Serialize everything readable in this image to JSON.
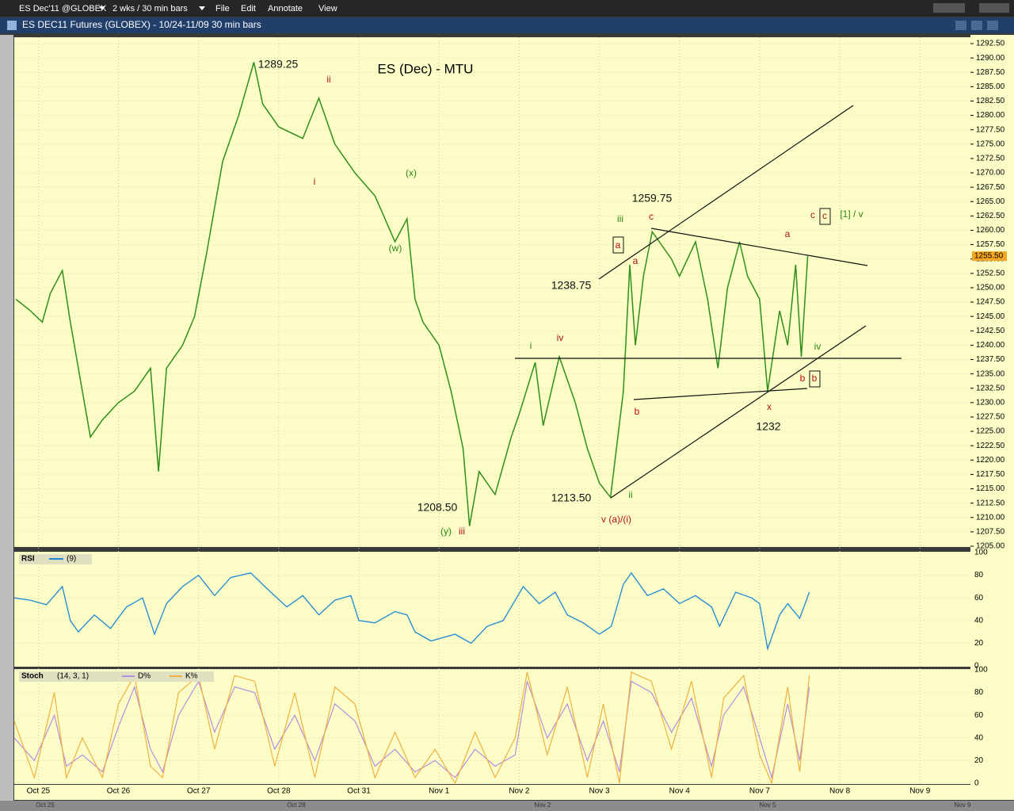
{
  "toolbar": {
    "symbol": "ES Dec'11 @GLOBEX",
    "period": "2 wks / 30 min bars",
    "menu": [
      "File",
      "Edit",
      "Annotate",
      "View"
    ]
  },
  "window_title": "ES DEC11 Futures (GLOBEX) - 10/24-11/09  30 min bars",
  "price_chart": {
    "title": "ES (Dec) - MTU",
    "xlim": [
      -0.3,
      11.63
    ],
    "ylim": [
      1205,
      1292.5
    ],
    "yticks": [
      {
        "value": 1205,
        "label": "1205.00"
      },
      {
        "value": 1207.5,
        "label": "1207.50"
      },
      {
        "value": 1210,
        "label": "1210.00"
      },
      {
        "value": 1212.5,
        "label": "1212.50"
      },
      {
        "value": 1215,
        "label": "1215.00"
      },
      {
        "value": 1217.5,
        "label": "1217.50"
      },
      {
        "value": 1220,
        "label": "1220.00"
      },
      {
        "value": 1222.5,
        "label": "1222.50"
      },
      {
        "value": 1225,
        "label": "1225.00"
      },
      {
        "value": 1227.5,
        "label": "1227.50"
      },
      {
        "value": 1230,
        "label": "1230.00"
      },
      {
        "value": 1232.5,
        "label": "1232.50"
      },
      {
        "value": 1235,
        "label": "1235.00"
      },
      {
        "value": 1237.5,
        "label": "1237.50"
      },
      {
        "value": 1240,
        "label": "1240.00"
      },
      {
        "value": 1242.5,
        "label": "1242.50"
      },
      {
        "value": 1245,
        "label": "1245.00"
      },
      {
        "value": 1247.5,
        "label": "1247.50"
      },
      {
        "value": 1250,
        "label": "1250.00"
      },
      {
        "value": 1252.5,
        "label": "1252.50"
      },
      {
        "value": 1255,
        "label": "1255.00"
      },
      {
        "value": 1257.5,
        "label": "1257.50"
      },
      {
        "value": 1260,
        "label": "1260.00"
      },
      {
        "value": 1262.5,
        "label": "1262.50"
      },
      {
        "value": 1265,
        "label": "1265.00"
      },
      {
        "value": 1267.5,
        "label": "1267.50"
      },
      {
        "value": 1270,
        "label": "1270.00"
      },
      {
        "value": 1272.5,
        "label": "1272.50"
      },
      {
        "value": 1275,
        "label": "1275.00"
      },
      {
        "value": 1277.5,
        "label": "1277.50"
      },
      {
        "value": 1280,
        "label": "1280.00"
      },
      {
        "value": 1282.5,
        "label": "1282.50"
      },
      {
        "value": 1285,
        "label": "1285.00"
      },
      {
        "value": 1287.5,
        "label": "1287.50"
      },
      {
        "value": 1290,
        "label": "1290.00"
      },
      {
        "value": 1292.5,
        "label": "1292.50"
      }
    ],
    "last": {
      "value": 1255.5,
      "label": "1255.50"
    },
    "x": [
      -0.28,
      -0.1,
      0.05,
      0.15,
      0.3,
      0.4,
      0.5,
      0.65,
      0.8,
      1.0,
      1.2,
      1.4,
      1.5,
      1.6,
      1.8,
      1.95,
      2.1,
      2.3,
      2.5,
      2.69,
      2.8,
      3.0,
      3.3,
      3.5,
      3.7,
      3.95,
      4.2,
      4.45,
      4.6,
      4.7,
      4.8,
      5.0,
      5.15,
      5.3,
      5.38,
      5.5,
      5.7,
      5.9,
      6.0,
      6.2,
      6.3,
      6.5,
      6.7,
      6.85,
      7.0,
      7.14,
      7.3,
      7.38,
      7.45,
      7.55,
      7.66,
      7.9,
      8.0,
      8.2,
      8.35,
      8.48,
      8.6,
      8.75,
      8.85,
      9.0,
      9.1,
      9.25,
      9.35,
      9.45,
      9.52,
      9.6
    ],
    "values": [
      1248,
      1246,
      1244,
      1249,
      1253,
      1244,
      1236,
      1224,
      1227,
      1230,
      1232,
      1236,
      1218,
      1236,
      1240,
      1245,
      1256,
      1272,
      1280,
      1289.25,
      1282,
      1278,
      1276,
      1283,
      1275,
      1270,
      1266,
      1258,
      1262,
      1248,
      1244,
      1240,
      1232,
      1222,
      1208.5,
      1218,
      1214,
      1224,
      1228,
      1237,
      1226,
      1238,
      1230,
      1222,
      1216,
      1213.5,
      1232,
      1254,
      1240,
      1252,
      1259.75,
      1255,
      1252,
      1258,
      1248,
      1236,
      1250,
      1258,
      1252,
      1248,
      1232,
      1246,
      1240,
      1254,
      1238,
      1255.5
    ],
    "annotations": [
      "1289.25",
      "ii",
      "i",
      "(x)",
      "(w)",
      "1259.75",
      "iii",
      "c",
      "a",
      "a",
      "1238.75",
      "iv",
      "i",
      "b",
      "1208.50",
      "(y)",
      "iii",
      "1213.50",
      "ii",
      "v (a)/(i)",
      "c",
      "c",
      "[1] / v",
      "a",
      "iv",
      "b",
      "b",
      "x",
      "1232"
    ]
  },
  "rsi": {
    "label": "RSI",
    "params": "(9)",
    "ylim": [
      0,
      100
    ],
    "yticks": [
      0,
      20,
      40,
      60,
      80,
      100
    ],
    "x": [
      -0.3,
      -0.1,
      0.1,
      0.3,
      0.4,
      0.5,
      0.7,
      0.9,
      1.1,
      1.3,
      1.45,
      1.6,
      1.8,
      2.0,
      2.2,
      2.4,
      2.65,
      2.9,
      3.1,
      3.3,
      3.5,
      3.7,
      3.9,
      4.0,
      4.2,
      4.45,
      4.6,
      4.7,
      4.9,
      5.2,
      5.4,
      5.6,
      5.8,
      6.05,
      6.25,
      6.45,
      6.6,
      6.8,
      7.0,
      7.15,
      7.3,
      7.4,
      7.6,
      7.8,
      8.0,
      8.2,
      8.4,
      8.5,
      8.7,
      8.9,
      9.0,
      9.1,
      9.25,
      9.35,
      9.5,
      9.62
    ],
    "values": [
      60,
      58,
      54,
      70,
      40,
      30,
      45,
      33,
      52,
      60,
      28,
      55,
      70,
      80,
      62,
      78,
      82,
      65,
      52,
      62,
      45,
      58,
      62,
      40,
      38,
      48,
      45,
      30,
      22,
      28,
      20,
      35,
      40,
      70,
      55,
      65,
      45,
      38,
      28,
      35,
      72,
      82,
      62,
      68,
      55,
      62,
      52,
      35,
      65,
      60,
      55,
      15,
      45,
      55,
      42,
      65
    ]
  },
  "stoch": {
    "label": "Stoch",
    "params": "(14, 3, 1)",
    "legend": [
      "D%",
      "K%"
    ],
    "ylim": [
      0,
      100
    ],
    "yticks": [
      0,
      20,
      40,
      60,
      80,
      100
    ],
    "x": [
      -0.3,
      -0.05,
      0.2,
      0.35,
      0.55,
      0.8,
      1.0,
      1.2,
      1.4,
      1.55,
      1.75,
      2.0,
      2.2,
      2.45,
      2.7,
      2.95,
      3.2,
      3.45,
      3.7,
      3.95,
      4.2,
      4.45,
      4.7,
      4.95,
      5.2,
      5.45,
      5.7,
      5.95,
      6.1,
      6.35,
      6.6,
      6.85,
      7.05,
      7.25,
      7.4,
      7.65,
      7.9,
      8.15,
      8.4,
      8.55,
      8.8,
      9.0,
      9.15,
      9.35,
      9.5,
      9.62
    ],
    "d": [
      40,
      20,
      60,
      15,
      25,
      10,
      50,
      85,
      30,
      10,
      60,
      90,
      45,
      85,
      80,
      30,
      60,
      20,
      70,
      55,
      15,
      30,
      10,
      20,
      5,
      30,
      15,
      25,
      90,
      40,
      70,
      20,
      55,
      10,
      90,
      80,
      45,
      75,
      15,
      60,
      85,
      40,
      5,
      70,
      20,
      85
    ],
    "k": [
      55,
      5,
      80,
      5,
      40,
      5,
      70,
      95,
      15,
      5,
      80,
      95,
      30,
      95,
      90,
      15,
      80,
      5,
      85,
      70,
      5,
      45,
      5,
      30,
      0,
      45,
      5,
      40,
      98,
      25,
      85,
      5,
      70,
      0,
      98,
      90,
      30,
      90,
      5,
      75,
      95,
      25,
      0,
      85,
      10,
      95
    ]
  },
  "x_axis": {
    "categories": [
      "Oct 25",
      "Oct 26",
      "Oct 27",
      "Oct 28",
      "Oct 31",
      "Nov 1",
      "Nov 2",
      "Nov 3",
      "Nov 4",
      "Nov 7",
      "Nov 8",
      "Nov 9"
    ]
  },
  "scrollbar": {
    "labels": [
      "Oct 25",
      "Oct 28",
      "Nov 2",
      "Nov 5",
      "Nov 9"
    ]
  }
}
